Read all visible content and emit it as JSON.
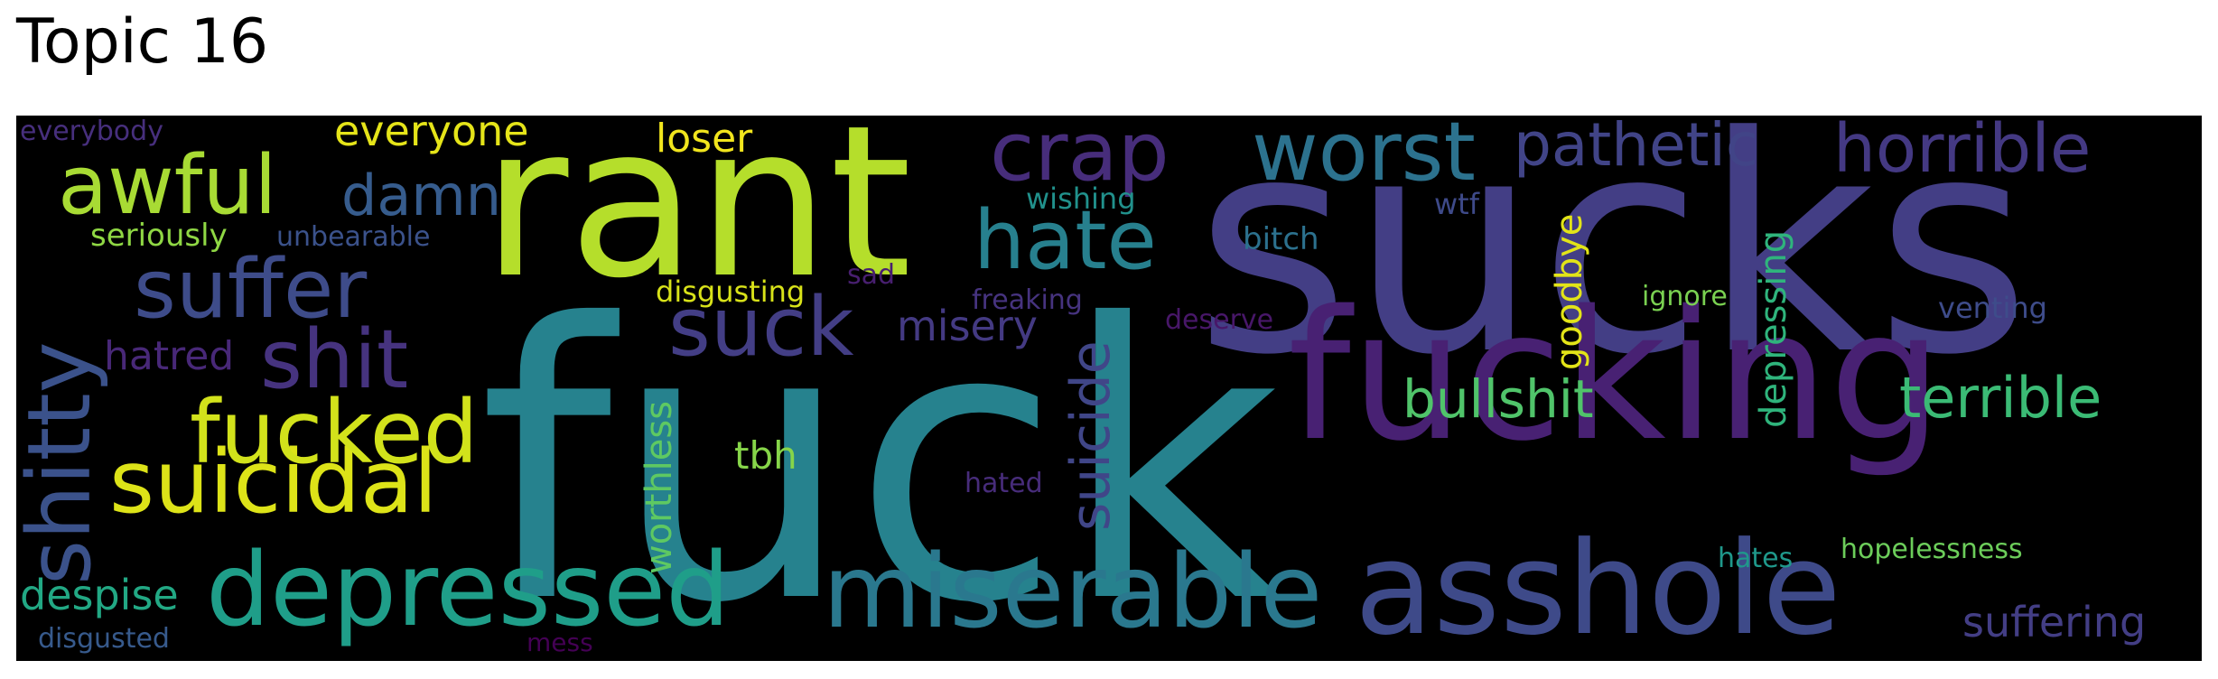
{
  "title": "Topic 16",
  "colors": {
    "background": "#000000",
    "palette": [
      "#482173",
      "#3e4a89",
      "#31688e",
      "#26828e",
      "#1f9e89",
      "#35b779",
      "#6ece58",
      "#b5de2b",
      "#fde725"
    ]
  },
  "words": [
    {
      "text": "fuck",
      "color": "#26828e"
    },
    {
      "text": "sucks",
      "color": "#433e85"
    },
    {
      "text": "rant",
      "color": "#b5de2b"
    },
    {
      "text": "fucking",
      "color": "#482173"
    },
    {
      "text": "asshole",
      "color": "#3e4a89"
    },
    {
      "text": "miserable",
      "color": "#2a788e"
    },
    {
      "text": "depressed",
      "color": "#1f9e89"
    },
    {
      "text": "suicidal",
      "color": "#dde318"
    },
    {
      "text": "fucked",
      "color": "#d2e21b"
    },
    {
      "text": "shitty",
      "color": "#3b528b"
    },
    {
      "text": "awful",
      "color": "#a8db34"
    },
    {
      "text": "suffer",
      "color": "#3e4c8a"
    },
    {
      "text": "shit",
      "color": "#46337f"
    },
    {
      "text": "crap",
      "color": "#472d7b"
    },
    {
      "text": "worst",
      "color": "#2c728e"
    },
    {
      "text": "hate",
      "color": "#27808e"
    },
    {
      "text": "suck",
      "color": "#433e85"
    },
    {
      "text": "pathetic",
      "color": "#414487"
    },
    {
      "text": "horrible",
      "color": "#443983"
    },
    {
      "text": "terrible",
      "color": "#3bbb75"
    },
    {
      "text": "bullshit",
      "color": "#50c46a"
    },
    {
      "text": "damn",
      "color": "#365c8d"
    },
    {
      "text": "suicide",
      "color": "#404688"
    },
    {
      "text": "misery",
      "color": "#443a83"
    },
    {
      "text": "suffering",
      "color": "#433e85"
    },
    {
      "text": "worthless",
      "color": "#5ec962"
    },
    {
      "text": "despise",
      "color": "#22a884"
    },
    {
      "text": "everyone",
      "color": "#e5e419"
    },
    {
      "text": "loser",
      "color": "#f1e51d"
    },
    {
      "text": "depressing",
      "color": "#2fb47c"
    },
    {
      "text": "goodbye",
      "color": "#e2e418"
    },
    {
      "text": "tbh",
      "color": "#86d549"
    },
    {
      "text": "hatred",
      "color": "#482878"
    },
    {
      "text": "disgusting",
      "color": "#d8e219"
    },
    {
      "text": "seriously",
      "color": "#8fd744"
    },
    {
      "text": "unbearable",
      "color": "#3b528b"
    },
    {
      "text": "wishing",
      "color": "#21918c"
    },
    {
      "text": "wtf",
      "color": "#3e4a89"
    },
    {
      "text": "bitch",
      "color": "#2c718e"
    },
    {
      "text": "ignore",
      "color": "#7ad151"
    },
    {
      "text": "venting",
      "color": "#3e4c8a"
    },
    {
      "text": "hopelessness",
      "color": "#6ccd5a"
    },
    {
      "text": "hates",
      "color": "#1f988b"
    },
    {
      "text": "everybody",
      "color": "#472f7d"
    },
    {
      "text": "disgusted",
      "color": "#375a8c"
    },
    {
      "text": "sad",
      "color": "#481f70"
    },
    {
      "text": "freaking",
      "color": "#46337f"
    },
    {
      "text": "deserve",
      "color": "#481769"
    },
    {
      "text": "hated",
      "color": "#472c7a"
    },
    {
      "text": "mess",
      "color": "#440154"
    }
  ]
}
